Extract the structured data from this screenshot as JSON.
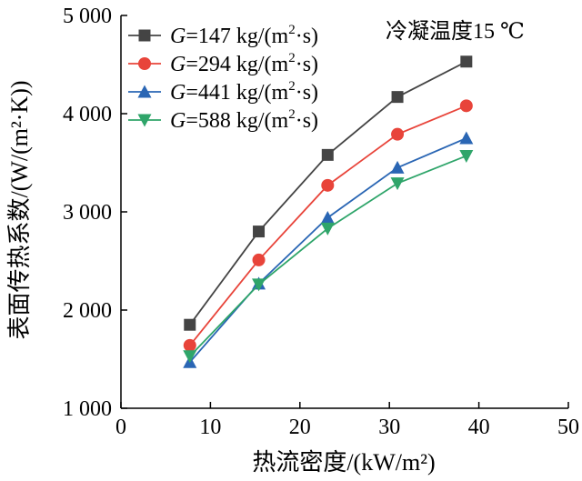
{
  "chart_data": {
    "type": "line",
    "title": "",
    "xlabel": "热流密度/(kW/m²)",
    "ylabel": "表面传热系数/(W/(m²·K))",
    "xlim": [
      0,
      50
    ],
    "ylim": [
      1000,
      5000
    ],
    "xticks": [
      0,
      10,
      20,
      30,
      40,
      50
    ],
    "yticks": [
      1000,
      2000,
      3000,
      4000,
      5000
    ],
    "xtick_labels": [
      "0",
      "10",
      "20",
      "30",
      "40",
      "50"
    ],
    "ytick_labels": [
      "1 000",
      "2 000",
      "3 000",
      "4 000",
      "5 000"
    ],
    "grid": false,
    "legend_position": "top-left",
    "annotation": "冷凝温度15 ℃",
    "series": [
      {
        "name": "G=147 kg/(m²·s)",
        "name_parts": {
          "symbol": "G",
          "rest": "=147 kg/(m",
          "sup": "2",
          "tail": "·s)"
        },
        "marker": "square",
        "color": "#444444",
        "x": [
          7.7,
          15.4,
          23.1,
          30.9,
          38.6
        ],
        "y": [
          1850,
          2800,
          3580,
          4170,
          4530
        ]
      },
      {
        "name": "G=294 kg/(m²·s)",
        "name_parts": {
          "symbol": "G",
          "rest": "=294 kg/(m",
          "sup": "2",
          "tail": "·s)"
        },
        "marker": "circle",
        "color": "#e8443a",
        "x": [
          7.7,
          15.4,
          23.1,
          30.9,
          38.6
        ],
        "y": [
          1640,
          2510,
          3270,
          3790,
          4080
        ]
      },
      {
        "name": "G=441 kg/(m²·s)",
        "name_parts": {
          "symbol": "G",
          "rest": "=441 kg/(m",
          "sup": "2",
          "tail": "·s)"
        },
        "marker": "triangle-up",
        "color": "#2a66b4",
        "x": [
          7.7,
          15.4,
          23.1,
          30.9,
          38.6
        ],
        "y": [
          1470,
          2270,
          2940,
          3450,
          3750
        ]
      },
      {
        "name": "G=588 kg/(m²·s)",
        "name_parts": {
          "symbol": "G",
          "rest": "=588 kg/(m",
          "sup": "2",
          "tail": "·s)"
        },
        "marker": "triangle-down",
        "color": "#2fa56a",
        "x": [
          7.7,
          15.4,
          23.1,
          30.9,
          38.6
        ],
        "y": [
          1530,
          2260,
          2830,
          3290,
          3570
        ]
      }
    ]
  }
}
